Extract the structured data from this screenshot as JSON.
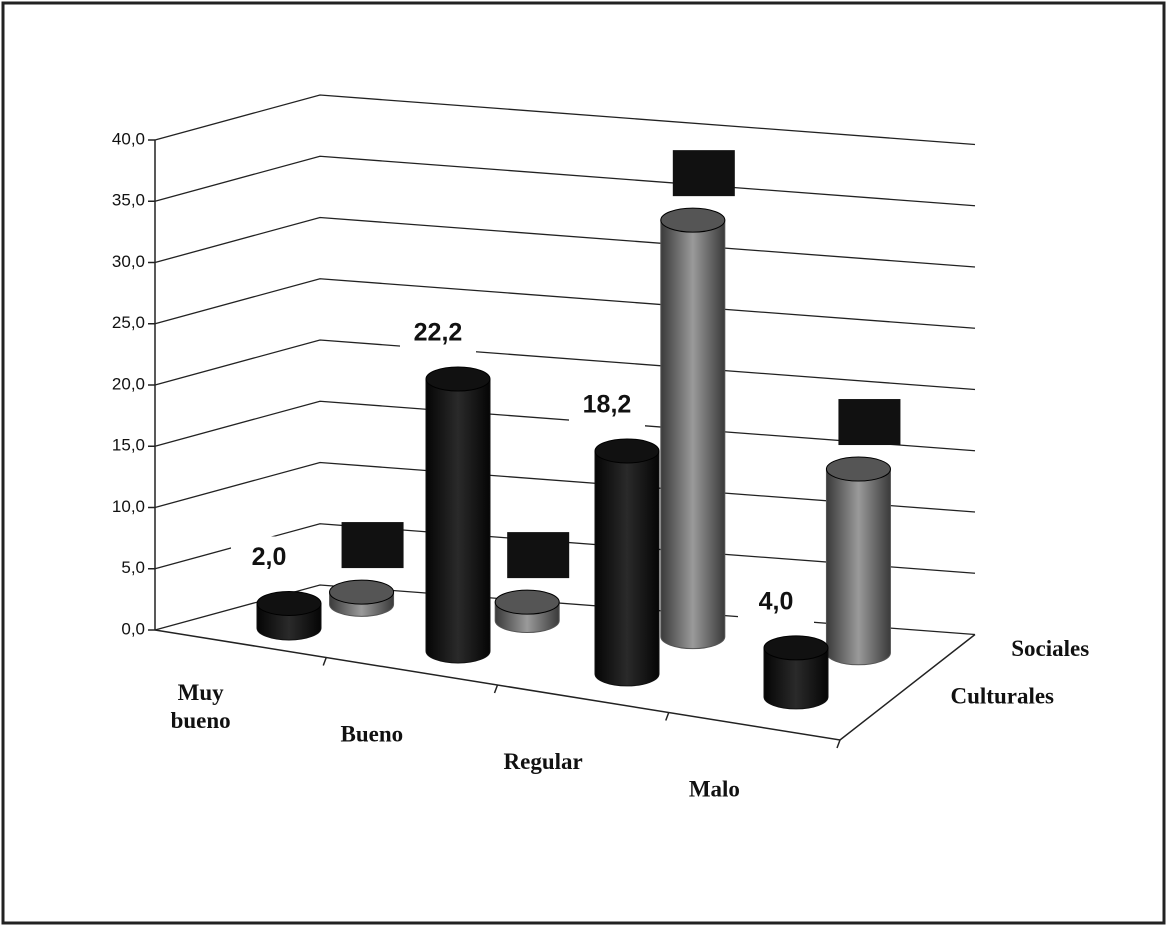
{
  "chart_data": {
    "type": "bar3d",
    "categories": [
      "Muy\nbueno",
      "Bueno",
      "Regular",
      "Malo"
    ],
    "series": [
      {
        "name": "Culturales",
        "color": "#111111",
        "values": [
          2.0,
          22.2,
          18.2,
          4.0
        ],
        "value_labels": [
          "2,0",
          "22,2",
          "18,2",
          "4,0"
        ]
      },
      {
        "name": "Sociales",
        "color": "#555555",
        "values": [
          1.0,
          1.5,
          34.0,
          15.0
        ]
      }
    ],
    "ylim": [
      0,
      40
    ],
    "yticks": [
      {
        "value": 0,
        "label": "0,0"
      },
      {
        "value": 5,
        "label": "5,0"
      },
      {
        "value": 10,
        "label": "10,0"
      },
      {
        "value": 15,
        "label": "15,0"
      },
      {
        "value": 20,
        "label": "20,0"
      },
      {
        "value": 25,
        "label": "25,0"
      },
      {
        "value": 30,
        "label": "30,0"
      },
      {
        "value": 35,
        "label": "35,0"
      },
      {
        "value": 40,
        "label": "40,0"
      }
    ],
    "grid": true
  }
}
